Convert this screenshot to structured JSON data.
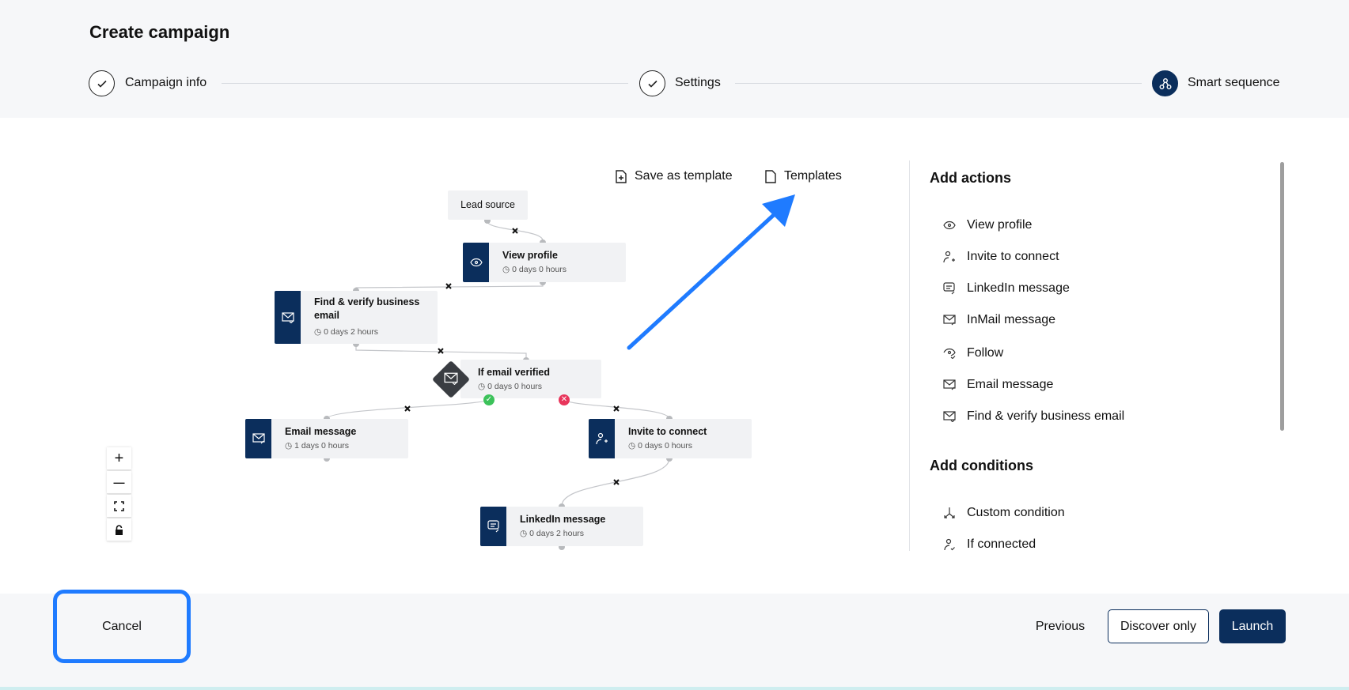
{
  "header": {
    "title": "Create campaign"
  },
  "steps": [
    {
      "label": "Campaign info",
      "state": "done"
    },
    {
      "label": "Settings",
      "state": "done"
    },
    {
      "label": "Smart sequence",
      "state": "active"
    }
  ],
  "toolbar": {
    "save_template": "Save as template",
    "templates": "Templates"
  },
  "canvas": {
    "nodes": [
      {
        "title": "Lead source"
      },
      {
        "title": "View profile",
        "delay": "0 days 0 hours",
        "icon": "eye-icon"
      },
      {
        "title": "Find & verify business email",
        "delay": "0 days 2 hours",
        "icon": "mail-check-icon"
      },
      {
        "title": "If email verified",
        "delay": "0 days 0 hours",
        "icon": "mail-check-icon"
      },
      {
        "title": "Email message",
        "delay": "1 days 0 hours",
        "icon": "mail-send-icon"
      },
      {
        "title": "Invite to connect",
        "delay": "0 days 0 hours",
        "icon": "user-plus-icon"
      },
      {
        "title": "LinkedIn message",
        "delay": "0 days 2 hours",
        "icon": "chat-send-icon"
      }
    ],
    "zoom_controls": {
      "zoom_in": "+",
      "zoom_out": "—"
    }
  },
  "panel": {
    "actions_title": "Add actions",
    "actions": [
      {
        "label": "View profile",
        "icon": "eye-icon"
      },
      {
        "label": "Invite to connect",
        "icon": "user-plus-icon"
      },
      {
        "label": "LinkedIn message",
        "icon": "chat-send-icon"
      },
      {
        "label": "InMail message",
        "icon": "mail-send-icon"
      },
      {
        "label": "Follow",
        "icon": "eye-check-icon"
      },
      {
        "label": "Email message",
        "icon": "mail-send-icon"
      },
      {
        "label": "Find & verify business email",
        "icon": "mail-check-icon"
      }
    ],
    "conditions_title": "Add conditions",
    "conditions": [
      {
        "label": "Custom condition",
        "icon": "split-icon"
      },
      {
        "label": "If connected",
        "icon": "user-check-icon"
      }
    ]
  },
  "footer": {
    "cancel": "Cancel",
    "previous": "Previous",
    "discover_only": "Discover only",
    "launch": "Launch"
  },
  "colors": {
    "brand": "#0b2e5c",
    "highlight": "#1f7bff",
    "success": "#3cc25a",
    "danger": "#e8355b"
  }
}
